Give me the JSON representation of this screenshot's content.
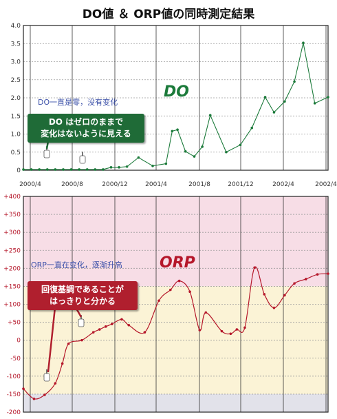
{
  "page_title": "DO値 ＆ ORP値の同時測定結果",
  "colors": {
    "do_line": "#1b7a3a",
    "orp_line": "#b5172a",
    "orp_band_high": "#f7dde6",
    "orp_band_mid": "#fbf3d6",
    "orp_band_low": "#e2e2ea"
  },
  "x_labels": [
    "2000/4",
    "2000/8",
    "2000/12",
    "2001/4",
    "2001/8",
    "2001/12",
    "2002/4",
    "2002/4"
  ],
  "do_series_label": "DO",
  "orp_series_label": "ORP",
  "do_annotation": "DO一直是零，没有变化",
  "orp_annotation": "ORP一直在变化，逐渐升高",
  "do_callout": [
    "DO はゼロのままで",
    "変化はないように見える"
  ],
  "orp_callout": [
    "回復基調であることが",
    "はっきりと分かる"
  ],
  "chart_data": [
    {
      "type": "line",
      "title": "DO",
      "ylim": [
        0,
        4.0
      ],
      "yticks": [
        "0",
        "0.5",
        "1.0",
        "1.5",
        "2.0",
        "2.5",
        "3.0",
        "3.5",
        "4.0"
      ],
      "xtick_labels": [
        "2000/4",
        "2000/8",
        "2000/12",
        "2001/4",
        "2001/8",
        "2001/12",
        "2002/4",
        "2002/4"
      ],
      "grid": true,
      "series": [
        {
          "name": "DO",
          "x": [
            0,
            0.9,
            1.8,
            2.7,
            3.6,
            4.5,
            5.4,
            6.3,
            7.2,
            8.1,
            9.0,
            9.9,
            10.8,
            11.7,
            13.0,
            14.6,
            16.1,
            16.8,
            17.4,
            18.3,
            19.3,
            20.2,
            21.1,
            22.9,
            24.5,
            25.8,
            27.3,
            28.3,
            29.5,
            30.6,
            31.6,
            32.9,
            34.4
          ],
          "values": [
            0.02,
            0.02,
            0.02,
            0.02,
            0.02,
            0.02,
            0.02,
            0.02,
            0.02,
            0.02,
            0.02,
            0.08,
            0.08,
            0.1,
            0.35,
            0.12,
            0.18,
            1.08,
            1.12,
            0.52,
            0.38,
            0.65,
            1.52,
            0.5,
            0.7,
            1.17,
            2.02,
            1.6,
            1.9,
            2.45,
            3.52,
            1.85,
            2.02
          ]
        }
      ]
    },
    {
      "type": "line",
      "title": "ORP",
      "ylim": [
        -200,
        400
      ],
      "yticks": [
        "-200",
        "-150",
        "-100",
        "-50",
        "0",
        "+50",
        "+100",
        "+150",
        "+200",
        "+250",
        "+300",
        "+350",
        "+400"
      ],
      "xtick_labels": [
        "2000/4",
        "2000/8",
        "2000/12",
        "2001/4",
        "2001/8",
        "2001/12",
        "2002/4",
        "2002/4"
      ],
      "grid": true,
      "bands": [
        {
          "from": 150,
          "to": 400,
          "color": "#f7dde6"
        },
        {
          "from": -150,
          "to": 150,
          "color": "#fbf3d6"
        },
        {
          "from": -200,
          "to": -150,
          "color": "#e2e2ea"
        }
      ],
      "series": [
        {
          "name": "ORP",
          "x": [
            0,
            1.2,
            2.4,
            3.6,
            4.4,
            5.1,
            6.6,
            7.9,
            8.6,
            9.3,
            10.0,
            11.1,
            11.9,
            13.7,
            15.3,
            16.6,
            17.6,
            18.8,
            19.9,
            20.6,
            22.4,
            23.4,
            24.1,
            25.0,
            26.1,
            27.2,
            28.3,
            29.5,
            30.6,
            31.9,
            33.2,
            34.4
          ],
          "values": [
            -135,
            -163,
            -152,
            -120,
            -65,
            -10,
            0,
            22,
            30,
            38,
            45,
            58,
            42,
            22,
            110,
            140,
            165,
            135,
            28,
            77,
            25,
            18,
            30,
            35,
            202,
            128,
            90,
            125,
            158,
            170,
            183,
            185
          ]
        }
      ]
    }
  ]
}
